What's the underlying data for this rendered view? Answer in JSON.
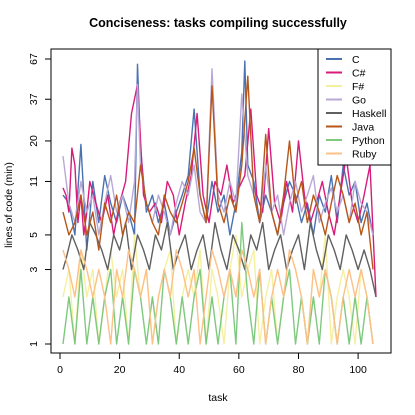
{
  "chart_data": {
    "type": "line",
    "title": "Conciseness: tasks compiling successfully",
    "xlabel": "task",
    "ylabel": "lines of code (min)",
    "xlim": [
      0,
      107
    ],
    "ylim": [
      1,
      67
    ],
    "y_scale": "log",
    "grid": false,
    "legend_position": "top-right",
    "x_ticks": [
      0,
      20,
      40,
      60,
      80,
      100
    ],
    "y_ticks": [
      1,
      3,
      5,
      11,
      20,
      37,
      67
    ],
    "series": [
      {
        "name": "C",
        "color": "#4a72b0",
        "x": [
          1,
          3,
          5,
          7,
          9,
          11,
          13,
          15,
          17,
          19,
          21,
          23,
          25,
          26,
          27,
          29,
          31,
          33,
          35,
          37,
          39,
          41,
          43,
          45,
          47,
          49,
          51,
          53,
          55,
          57,
          59,
          61,
          62,
          63,
          65,
          67,
          69,
          71,
          73,
          75,
          77,
          79,
          81,
          83,
          85,
          87,
          89,
          91,
          93,
          95,
          97,
          99,
          101,
          103,
          105
        ],
        "values": [
          9,
          8,
          5,
          19,
          4,
          11,
          6,
          12,
          8,
          6,
          9,
          7,
          5,
          62,
          18,
          7,
          9,
          6,
          8,
          5,
          7,
          9,
          12,
          32,
          9,
          6,
          11,
          7,
          9,
          5,
          8,
          17,
          65,
          14,
          11,
          6,
          9,
          7,
          5,
          8,
          11,
          9,
          6,
          8,
          5,
          9,
          7,
          12,
          6,
          14,
          9,
          11,
          6,
          8,
          5
        ]
      },
      {
        "name": "C#",
        "color": "#d81b7a",
        "x": [
          1,
          2,
          3,
          4,
          5,
          6,
          7,
          8,
          9,
          10,
          12,
          14,
          16,
          18,
          20,
          22,
          24,
          26,
          28,
          30,
          32,
          34,
          36,
          38,
          40,
          42,
          44,
          46,
          48,
          50,
          52,
          54,
          56,
          58,
          60,
          62,
          64,
          66,
          68,
          70,
          72,
          74,
          76,
          78,
          80,
          82,
          84,
          86,
          88,
          90,
          92,
          94,
          96,
          98,
          100,
          102,
          104,
          106
        ],
        "values": [
          10,
          9,
          7,
          18,
          14,
          6,
          9,
          5,
          7,
          11,
          8,
          6,
          9,
          5,
          8,
          11,
          30,
          46,
          9,
          7,
          8,
          6,
          11,
          9,
          5,
          8,
          12,
          30,
          9,
          6,
          11,
          9,
          14,
          8,
          10,
          12,
          32,
          9,
          7,
          24,
          8,
          6,
          11,
          7,
          20,
          9,
          6,
          8,
          11,
          7,
          5,
          9,
          16,
          8,
          6,
          9,
          14,
          2
        ]
      },
      {
        "name": "F#",
        "color": "#f5f0a0",
        "x": [
          1,
          3,
          5,
          7,
          9,
          11,
          13,
          15,
          17,
          19,
          21,
          23,
          25,
          27,
          29,
          31,
          33,
          35,
          37,
          39,
          41,
          43,
          45,
          47,
          49,
          51,
          53,
          55,
          57,
          59,
          61,
          63,
          65,
          67,
          69,
          71,
          73,
          75,
          77,
          79,
          81,
          83,
          85,
          87,
          89,
          91,
          93,
          95,
          97,
          99,
          101,
          103,
          105
        ],
        "values": [
          2,
          3,
          1,
          4,
          2,
          3,
          1,
          2,
          4,
          2,
          3,
          1,
          5,
          2,
          3,
          1,
          2,
          3,
          4,
          1,
          2,
          3,
          2,
          4,
          1,
          3,
          2,
          1,
          3,
          5,
          2,
          3,
          4,
          1,
          2,
          3,
          1,
          2,
          4,
          3,
          2,
          1,
          3,
          2,
          5,
          1,
          2,
          3,
          2,
          1,
          3,
          2,
          1
        ]
      },
      {
        "name": "Go",
        "color": "#b8a8d6",
        "x": [
          1,
          3,
          5,
          7,
          9,
          11,
          13,
          15,
          17,
          19,
          21,
          23,
          25,
          26,
          27,
          29,
          31,
          33,
          35,
          37,
          39,
          41,
          43,
          45,
          47,
          49,
          51,
          53,
          55,
          57,
          59,
          61,
          63,
          65,
          67,
          69,
          71,
          73,
          75,
          77,
          79,
          81,
          83,
          85,
          87,
          89,
          91,
          93,
          95,
          97,
          99,
          101,
          103,
          105
        ],
        "values": [
          16,
          8,
          6,
          11,
          7,
          9,
          5,
          8,
          12,
          7,
          9,
          6,
          11,
          46,
          14,
          8,
          6,
          9,
          7,
          5,
          8,
          11,
          9,
          14,
          7,
          6,
          58,
          9,
          7,
          11,
          8,
          40,
          12,
          9,
          6,
          14,
          7,
          9,
          5,
          8,
          11,
          7,
          9,
          12,
          6,
          8,
          10,
          7,
          9,
          6,
          11,
          8,
          7,
          5
        ]
      },
      {
        "name": "Haskell",
        "color": "#606060",
        "x": [
          1,
          2,
          4,
          6,
          8,
          10,
          12,
          14,
          16,
          18,
          20,
          22,
          24,
          26,
          28,
          30,
          32,
          34,
          36,
          38,
          40,
          42,
          44,
          46,
          48,
          50,
          52,
          54,
          56,
          58,
          60,
          62,
          64,
          66,
          68,
          70,
          72,
          74,
          76,
          78,
          80,
          82,
          84,
          86,
          88,
          90,
          92,
          94,
          96,
          98,
          100,
          102,
          104,
          106
        ],
        "values": [
          3,
          3.5,
          5,
          4,
          3,
          6,
          5,
          4,
          3,
          5,
          4,
          6,
          3,
          5,
          4,
          3,
          5,
          4,
          6,
          3,
          4,
          5,
          3,
          4,
          5,
          3,
          6,
          4,
          3,
          5,
          4,
          3,
          5,
          4,
          6,
          3,
          4,
          5,
          3,
          4,
          5,
          3,
          6,
          4,
          3,
          5,
          4,
          3,
          5,
          4,
          3,
          4,
          3,
          2
        ]
      },
      {
        "name": "Java",
        "color": "#b8561a",
        "x": [
          1,
          3,
          5,
          7,
          9,
          11,
          13,
          15,
          17,
          19,
          21,
          23,
          25,
          27,
          29,
          31,
          33,
          35,
          37,
          39,
          41,
          43,
          45,
          47,
          49,
          51,
          53,
          55,
          57,
          59,
          61,
          63,
          65,
          67,
          69,
          71,
          73,
          75,
          77,
          79,
          81,
          83,
          85,
          87,
          89,
          91,
          93,
          95,
          97,
          99,
          101,
          103,
          105
        ],
        "values": [
          7,
          5,
          6,
          9,
          5,
          7,
          4,
          8,
          6,
          9,
          5,
          7,
          6,
          14,
          8,
          6,
          5,
          9,
          7,
          6,
          8,
          11,
          18,
          9,
          6,
          45,
          8,
          6,
          9,
          7,
          14,
          52,
          9,
          6,
          22,
          7,
          5,
          9,
          20,
          8,
          11,
          6,
          9,
          7,
          5,
          8,
          12,
          9,
          6,
          8,
          5,
          7,
          3
        ]
      },
      {
        "name": "Python",
        "color": "#7fc97f",
        "x": [
          1,
          3,
          5,
          7,
          9,
          11,
          13,
          15,
          17,
          19,
          21,
          23,
          25,
          27,
          29,
          31,
          33,
          35,
          37,
          39,
          41,
          43,
          45,
          47,
          49,
          51,
          53,
          55,
          57,
          59,
          61,
          63,
          65,
          67,
          69,
          71,
          73,
          75,
          77,
          79,
          81,
          83,
          85,
          87,
          89,
          91,
          93,
          95,
          97,
          99,
          101,
          103,
          105
        ],
        "values": [
          1,
          2,
          1,
          3,
          1,
          2,
          1,
          2,
          3,
          1,
          2,
          1,
          3,
          2,
          1,
          2,
          1,
          3,
          2,
          1,
          2,
          1,
          2,
          3,
          1,
          2,
          1,
          2,
          3,
          1,
          6,
          2,
          1,
          3,
          1,
          2,
          1,
          2,
          3,
          1,
          2,
          1,
          2,
          1,
          3,
          2,
          1,
          2,
          1,
          2,
          1,
          2,
          1
        ]
      },
      {
        "name": "Ruby",
        "color": "#fdc086",
        "x": [
          1,
          3,
          5,
          7,
          9,
          11,
          13,
          15,
          17,
          19,
          21,
          23,
          25,
          27,
          29,
          31,
          33,
          35,
          37,
          39,
          41,
          43,
          45,
          47,
          49,
          51,
          53,
          55,
          57,
          59,
          61,
          63,
          65,
          67,
          69,
          71,
          73,
          75,
          77,
          79,
          81,
          83,
          85,
          87,
          89,
          91,
          93,
          95,
          97,
          99,
          101,
          103,
          105
        ],
        "values": [
          4,
          3,
          2,
          4,
          3,
          2,
          3,
          2,
          1,
          3,
          2,
          4,
          3,
          2,
          3,
          1,
          2,
          3,
          2,
          4,
          3,
          2,
          3,
          1,
          2,
          4,
          3,
          2,
          3,
          2,
          4,
          3,
          2,
          3,
          1,
          2,
          3,
          2,
          4,
          3,
          2,
          1,
          3,
          2,
          3,
          2,
          1,
          2,
          3,
          2,
          3,
          2,
          1
        ]
      }
    ]
  }
}
